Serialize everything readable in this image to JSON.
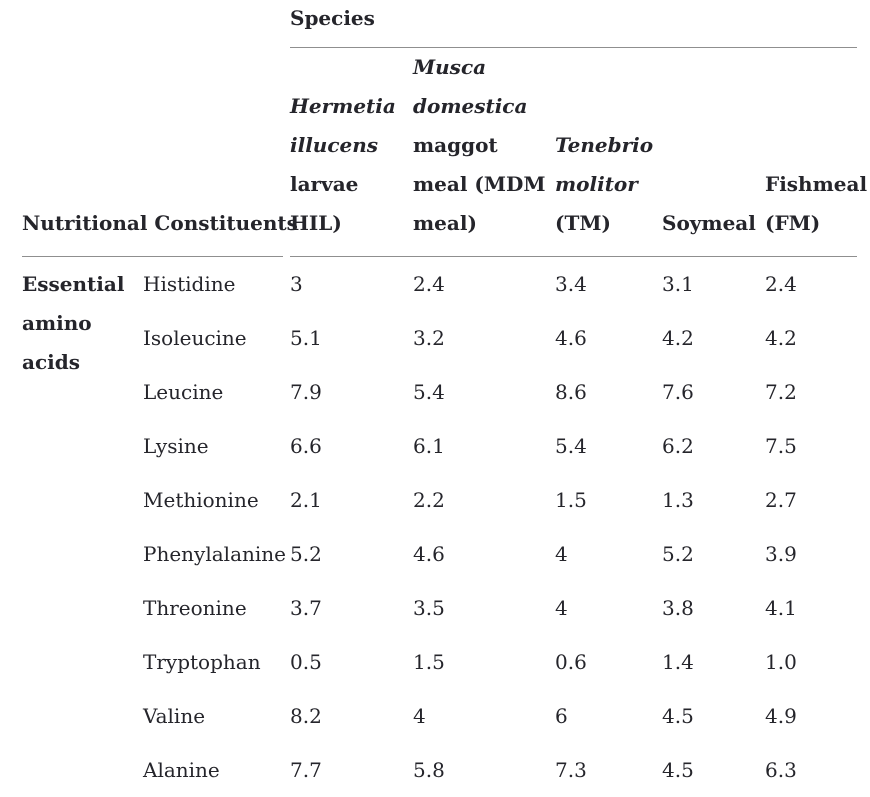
{
  "colors": {
    "text": "#25252b",
    "rule": "#8f8f8f",
    "background": "#ffffff"
  },
  "table": {
    "span_header": "Species",
    "row_header": "Nutritional Constituents",
    "group_label": "Essential\namino\nacids",
    "species_columns": [
      {
        "id": "hil",
        "lines": [
          {
            "text": "Hermetia",
            "italic": true
          },
          {
            "text": "illucens",
            "italic": true
          },
          {
            "text": "larvae",
            "italic": false
          },
          {
            "text": "HIL)",
            "italic": false
          }
        ]
      },
      {
        "id": "mdm",
        "lines": [
          {
            "text": "Musca",
            "italic": true
          },
          {
            "text": "domestica",
            "italic": true
          },
          {
            "text": "maggot",
            "italic": false
          },
          {
            "text": "meal (MDM",
            "italic": false
          },
          {
            "text": "meal)",
            "italic": false
          }
        ]
      },
      {
        "id": "tm",
        "lines": [
          {
            "text": "Tenebrio",
            "italic": true
          },
          {
            "text": "molitor",
            "italic": true
          },
          {
            "text": "(TM)",
            "italic": false
          }
        ]
      },
      {
        "id": "soymeal",
        "lines": [
          {
            "text": "Soymeal",
            "italic": false
          }
        ]
      },
      {
        "id": "fishmeal",
        "lines": [
          {
            "text": "Fishmeal",
            "italic": false
          },
          {
            "text": "(FM)",
            "italic": false
          }
        ]
      }
    ],
    "rows": [
      {
        "constituent": "Histidine",
        "values": [
          "3",
          "2.4",
          "3.4",
          "3.1",
          "2.4"
        ]
      },
      {
        "constituent": "Isoleucine",
        "values": [
          "5.1",
          "3.2",
          "4.6",
          "4.2",
          "4.2"
        ]
      },
      {
        "constituent": "Leucine",
        "values": [
          "7.9",
          "5.4",
          "8.6",
          "7.6",
          "7.2"
        ]
      },
      {
        "constituent": "Lysine",
        "values": [
          "6.6",
          "6.1",
          "5.4",
          "6.2",
          "7.5"
        ]
      },
      {
        "constituent": "Methionine",
        "values": [
          "2.1",
          "2.2",
          "1.5",
          "1.3",
          "2.7"
        ]
      },
      {
        "constituent": "Phenylalanine",
        "values": [
          "5.2",
          "4.6",
          "4",
          "5.2",
          "3.9"
        ]
      },
      {
        "constituent": "Threonine",
        "values": [
          "3.7",
          "3.5",
          "4",
          "3.8",
          "4.1"
        ]
      },
      {
        "constituent": "Tryptophan",
        "values": [
          "0.5",
          "1.5",
          "0.6",
          "1.4",
          "1.0"
        ]
      },
      {
        "constituent": "Valine",
        "values": [
          "8.2",
          "4",
          "6",
          "4.5",
          "4.9"
        ]
      },
      {
        "constituent": "Alanine",
        "values": [
          "7.7",
          "5.8",
          "7.3",
          "4.5",
          "6.3"
        ]
      }
    ]
  }
}
